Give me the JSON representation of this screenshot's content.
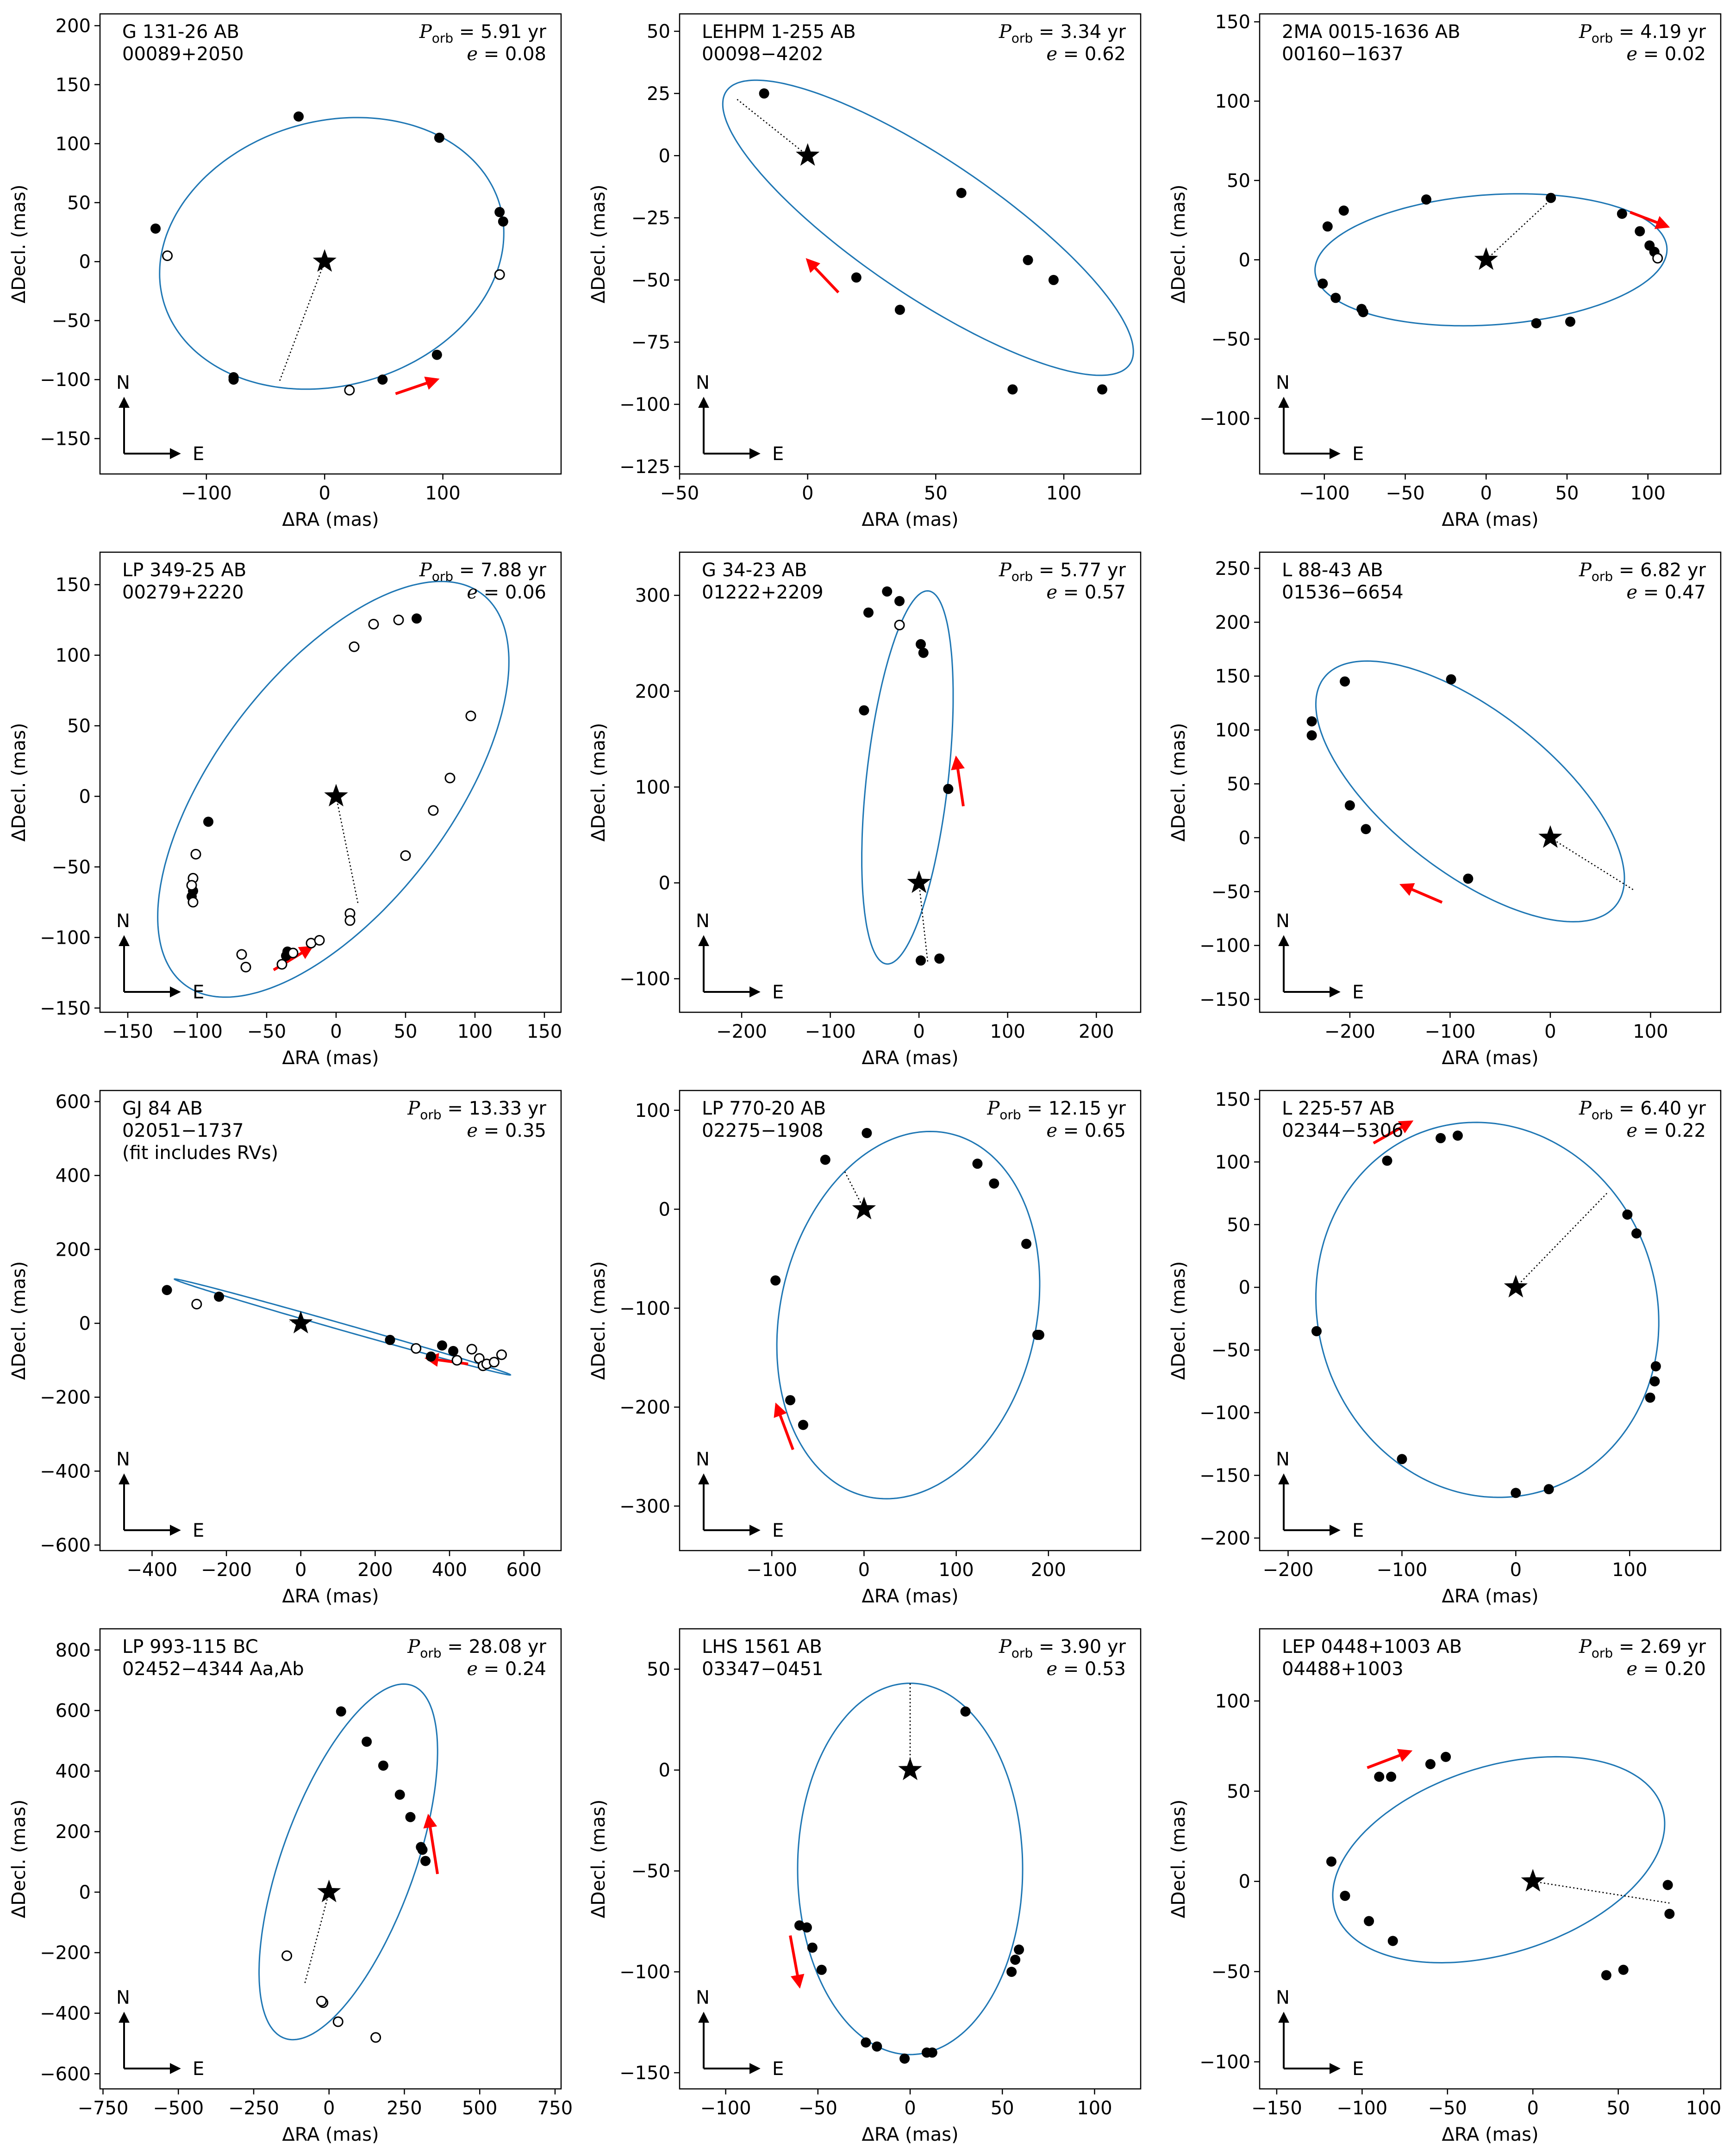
{
  "figure": {
    "xlabel": "ΔRA  (mas)",
    "ylabel": "ΔDecl.  (mas)",
    "compass_n": "N",
    "compass_e": "E"
  },
  "colors": {
    "orbit": "#1f77b4",
    "arrow": "#ff0000",
    "point": "#000000",
    "star": "#000000"
  },
  "chart_data": [
    {
      "type": "scatter",
      "name": "G 131-26 AB",
      "designation": "00089+2050",
      "note": "",
      "porb": "5.91 yr",
      "ecc": "0.08",
      "xlim": [
        -190,
        200
      ],
      "ylim": [
        -180,
        210
      ],
      "xticks": [
        -100,
        0,
        100
      ],
      "yticks": [
        -150,
        -100,
        -50,
        0,
        50,
        100,
        150,
        200
      ],
      "ellipse": {
        "cx": 6,
        "cy": 7,
        "a": 148,
        "b": 112,
        "angle": 16
      },
      "line_to": [
        -38,
        -101
      ],
      "arrow": [
        [
          60,
          -112
        ],
        [
          95,
          -100
        ]
      ],
      "points_filled": [
        [
          -143,
          28
        ],
        [
          -22,
          123
        ],
        [
          97,
          105
        ],
        [
          148,
          42
        ],
        [
          151,
          34
        ],
        [
          -77,
          -98
        ],
        [
          -77,
          -100
        ],
        [
          49,
          -100
        ],
        [
          95,
          -79
        ]
      ],
      "points_open": [
        [
          -133,
          5
        ],
        [
          148,
          -11
        ],
        [
          21,
          -109
        ]
      ]
    },
    {
      "type": "scatter",
      "name": "LEHPM 1-255 AB",
      "designation": "00098−4202",
      "note": "",
      "porb": "3.34 yr",
      "ecc": "0.62",
      "xlim": [
        -50,
        130
      ],
      "ylim": [
        -128,
        57
      ],
      "xticks": [
        -50,
        0,
        50,
        100
      ],
      "yticks": [
        -125,
        -100,
        -75,
        -50,
        -25,
        0,
        25,
        50
      ],
      "ellipse": {
        "cx": 47,
        "cy": -29,
        "a": 96,
        "b": 27,
        "angle": -35
      },
      "line_to": [
        -28,
        23
      ],
      "arrow": [
        [
          12,
          -55
        ],
        [
          0,
          -42
        ]
      ],
      "points_filled": [
        [
          -17,
          25
        ],
        [
          60,
          -15
        ],
        [
          86,
          -42
        ],
        [
          96,
          -50
        ],
        [
          19,
          -49
        ],
        [
          36,
          -62
        ],
        [
          80,
          -94
        ],
        [
          115,
          -94
        ]
      ],
      "points_open": []
    },
    {
      "type": "scatter",
      "name": "2MA 0015-1636 AB",
      "designation": "00160−1637",
      "note": "",
      "porb": "4.19 yr",
      "ecc": "0.02",
      "xlim": [
        -140,
        145
      ],
      "ylim": [
        -135,
        155
      ],
      "xticks": [
        -100,
        -50,
        0,
        50,
        100
      ],
      "yticks": [
        -100,
        -50,
        0,
        50,
        100,
        150
      ],
      "ellipse": {
        "cx": 3,
        "cy": 0,
        "a": 109,
        "b": 41,
        "angle": 4
      },
      "line_to": [
        40,
        38
      ],
      "arrow": [
        [
          89,
          30
        ],
        [
          112,
          21
        ]
      ],
      "points_filled": [
        [
          -37,
          38
        ],
        [
          -88,
          31
        ],
        [
          -98,
          21
        ],
        [
          -101,
          -15
        ],
        [
          -93,
          -24
        ],
        [
          -77,
          -31
        ],
        [
          -76,
          -33
        ],
        [
          40,
          39
        ],
        [
          84,
          29
        ],
        [
          95,
          18
        ],
        [
          101,
          9
        ],
        [
          104,
          5
        ],
        [
          52,
          -39
        ],
        [
          31,
          -40
        ]
      ],
      "points_open": [
        [
          106,
          1
        ]
      ]
    },
    {
      "type": "scatter",
      "name": "LP 349-25 AB",
      "designation": "00279+2220",
      "note": "",
      "porb": "7.88 yr",
      "ecc": "0.06",
      "xlim": [
        -170,
        162
      ],
      "ylim": [
        -153,
        173
      ],
      "xticks": [
        -150,
        -100,
        -50,
        0,
        50,
        100,
        150
      ],
      "yticks": [
        -150,
        -100,
        -50,
        0,
        50,
        100,
        150
      ],
      "ellipse": {
        "cx": -2,
        "cy": 5,
        "a": 175,
        "b": 84,
        "angle": 52
      },
      "line_to": [
        16,
        -77
      ],
      "arrow": [
        [
          -45,
          -123
        ],
        [
          -18,
          -107
        ]
      ],
      "points_filled": [
        [
          58,
          126
        ],
        [
          -92,
          -18
        ],
        [
          -103,
          -67
        ],
        [
          -104,
          -71
        ],
        [
          -35,
          -110
        ],
        [
          -36,
          -113
        ]
      ],
      "points_open": [
        [
          97,
          57
        ],
        [
          82,
          13
        ],
        [
          70,
          -10
        ],
        [
          50,
          -42
        ],
        [
          10,
          -83
        ],
        [
          10,
          -88
        ],
        [
          -103,
          -58
        ],
        [
          -104,
          -63
        ],
        [
          -101,
          -41
        ],
        [
          -103,
          -75
        ],
        [
          -68,
          -112
        ],
        [
          -65,
          -121
        ],
        [
          -39,
          -119
        ],
        [
          -31,
          -111
        ],
        [
          -18,
          -104
        ],
        [
          -12,
          -102
        ],
        [
          27,
          122
        ],
        [
          45,
          125
        ],
        [
          13,
          106
        ]
      ]
    },
    {
      "type": "scatter",
      "name": "G 34-23 AB",
      "designation": "01222+2209",
      "note": "",
      "porb": "5.77 yr",
      "ecc": "0.57",
      "xlim": [
        -270,
        250
      ],
      "ylim": [
        -135,
        345
      ],
      "xticks": [
        -200,
        -100,
        0,
        100,
        200
      ],
      "yticks": [
        -100,
        0,
        100,
        200,
        300
      ],
      "ellipse": {
        "cx": -13,
        "cy": 110,
        "a": 196,
        "b": 46,
        "angle": 83
      },
      "line_to": [
        10,
        -84
      ],
      "arrow": [
        [
          50,
          80
        ],
        [
          42,
          130
        ]
      ],
      "points_filled": [
        [
          -36,
          304
        ],
        [
          -22,
          294
        ],
        [
          -57,
          282
        ],
        [
          -62,
          180
        ],
        [
          2,
          249
        ],
        [
          5,
          240
        ],
        [
          33,
          98
        ],
        [
          23,
          -79
        ],
        [
          2,
          -81
        ]
      ],
      "points_open": [
        [
          -22,
          269
        ]
      ]
    },
    {
      "type": "scatter",
      "name": "L 88-43 AB",
      "designation": "01536−6654",
      "note": "",
      "porb": "6.82 yr",
      "ecc": "0.47",
      "xlim": [
        -290,
        170
      ],
      "ylim": [
        -162,
        265
      ],
      "xticks": [
        -200,
        -100,
        0,
        100
      ],
      "yticks": [
        -150,
        -100,
        -50,
        0,
        50,
        100,
        150,
        200,
        250
      ],
      "ellipse": {
        "cx": -80,
        "cy": 43,
        "a": 180,
        "b": 77,
        "angle": -35
      },
      "line_to": [
        84,
        -49
      ],
      "arrow": [
        [
          -108,
          -60
        ],
        [
          -148,
          -44
        ]
      ],
      "points_filled": [
        [
          -238,
          108
        ],
        [
          -238,
          95
        ],
        [
          -205,
          145
        ],
        [
          -200,
          30
        ],
        [
          -184,
          8
        ],
        [
          -99,
          147
        ],
        [
          -82,
          -38
        ]
      ],
      "points_open": []
    },
    {
      "type": "scatter",
      "name": "GJ 84 AB",
      "designation": "02051−1737",
      "note": "(fit includes RVs)",
      "porb": "13.33 yr",
      "ecc": "0.35",
      "xlim": [
        -540,
        700
      ],
      "ylim": [
        -615,
        630
      ],
      "xticks": [
        -400,
        -200,
        0,
        200,
        400,
        600
      ],
      "yticks": [
        -600,
        -400,
        -200,
        0,
        200,
        400,
        600
      ],
      "ellipse": {
        "cx": 112,
        "cy": -10,
        "a": 470,
        "b": 9,
        "angle": -16
      },
      "line_to": [
        -30,
        5
      ],
      "arrow": [
        [
          450,
          -110
        ],
        [
          340,
          -95
        ]
      ],
      "points_filled": [
        [
          -360,
          90
        ],
        [
          -220,
          72
        ],
        [
          240,
          -45
        ],
        [
          380,
          -60
        ],
        [
          410,
          -75
        ],
        [
          350,
          -90
        ]
      ],
      "points_open": [
        [
          -280,
          52
        ],
        [
          310,
          -68
        ],
        [
          460,
          -70
        ],
        [
          480,
          -95
        ],
        [
          490,
          -115
        ],
        [
          500,
          -110
        ],
        [
          520,
          -105
        ],
        [
          540,
          -85
        ],
        [
          420,
          -100
        ]
      ]
    },
    {
      "type": "scatter",
      "name": "LP 770-20 AB",
      "designation": "02275−1908",
      "note": "",
      "porb": "12.15 yr",
      "ecc": "0.65",
      "xlim": [
        -200,
        300
      ],
      "ylim": [
        -345,
        120
      ],
      "xticks": [
        -100,
        0,
        100,
        200
      ],
      "yticks": [
        -300,
        -200,
        -100,
        0,
        100
      ],
      "ellipse": {
        "cx": 48,
        "cy": -107,
        "a": 189,
        "b": 138,
        "angle": 74
      },
      "line_to": [
        -22,
        40
      ],
      "arrow": [
        [
          -77,
          -243
        ],
        [
          -95,
          -198
        ]
      ],
      "points_filled": [
        [
          3,
          77
        ],
        [
          -42,
          50
        ],
        [
          123,
          46
        ],
        [
          141,
          26
        ],
        [
          176,
          -35
        ],
        [
          188,
          -127
        ],
        [
          190,
          -127
        ],
        [
          -96,
          -72
        ],
        [
          -80,
          -193
        ],
        [
          -66,
          -218
        ]
      ],
      "points_open": []
    },
    {
      "type": "scatter",
      "name": "L 225-57 AB",
      "designation": "02344−5306",
      "note": "",
      "porb": "6.40 yr",
      "ecc": "0.22",
      "xlim": [
        -225,
        180
      ],
      "ylim": [
        -210,
        157
      ],
      "xticks": [
        -200,
        -100,
        0,
        100
      ],
      "yticks": [
        -200,
        -150,
        -100,
        -50,
        0,
        50,
        100,
        150
      ],
      "ellipse": {
        "cx": -25,
        "cy": -18,
        "a": 155,
        "b": 145,
        "angle": -42
      },
      "line_to": [
        80,
        75
      ],
      "arrow": [
        [
          -125,
          115
        ],
        [
          -92,
          132
        ]
      ],
      "points_filled": [
        [
          -113,
          101
        ],
        [
          -66,
          119
        ],
        [
          -51,
          121
        ],
        [
          98,
          58
        ],
        [
          106,
          43
        ],
        [
          123,
          -63
        ],
        [
          122,
          -75
        ],
        [
          118,
          -88
        ],
        [
          -175,
          -35
        ],
        [
          -100,
          -137
        ],
        [
          29,
          -161
        ],
        [
          0,
          -164
        ]
      ],
      "points_open": []
    },
    {
      "type": "scatter",
      "name": "LP 993-115 BC",
      "designation": "02452−4344 Aa,Ab",
      "note": "",
      "porb": "28.08 yr",
      "ecc": "0.24",
      "xlim": [
        -760,
        770
      ],
      "ylim": [
        -650,
        870
      ],
      "xticks": [
        -750,
        -500,
        -250,
        0,
        250,
        500,
        750
      ],
      "yticks": [
        -600,
        -400,
        -200,
        0,
        200,
        400,
        600,
        800
      ],
      "ellipse": {
        "cx": 64,
        "cy": 100,
        "a": 620,
        "b": 220,
        "angle": 70
      },
      "line_to": [
        -80,
        -300
      ],
      "arrow": [
        [
          360,
          60
        ],
        [
          330,
          250
        ]
      ],
      "points_filled": [
        [
          40,
          597
        ],
        [
          125,
          497
        ],
        [
          180,
          418
        ],
        [
          235,
          322
        ],
        [
          270,
          248
        ],
        [
          305,
          149
        ],
        [
          310,
          140
        ],
        [
          320,
          103
        ]
      ],
      "points_open": [
        [
          -140,
          -210
        ],
        [
          -20,
          -365
        ],
        [
          -25,
          -360
        ],
        [
          30,
          -428
        ],
        [
          155,
          -480
        ]
      ]
    },
    {
      "type": "scatter",
      "name": "LHS 1561 AB",
      "designation": "03347−0451",
      "note": "",
      "porb": "3.90 yr",
      "ecc": "0.53",
      "xlim": [
        -125,
        125
      ],
      "ylim": [
        -158,
        70
      ],
      "xticks": [
        -100,
        -50,
        0,
        50,
        100
      ],
      "yticks": [
        -150,
        -100,
        -50,
        0,
        50
      ],
      "ellipse": {
        "cx": 0,
        "cy": -49,
        "a": 92,
        "b": 61,
        "angle": 90
      },
      "line_to": [
        0,
        43
      ],
      "arrow": [
        [
          -65,
          -82
        ],
        [
          -60,
          -107
        ]
      ],
      "points_filled": [
        [
          30,
          29
        ],
        [
          -60,
          -77
        ],
        [
          -56,
          -78
        ],
        [
          -53,
          -88
        ],
        [
          -48,
          -99
        ],
        [
          -24,
          -135
        ],
        [
          -18,
          -137
        ],
        [
          -3,
          -143
        ],
        [
          9,
          -140
        ],
        [
          12,
          -140
        ],
        [
          59,
          -89
        ],
        [
          57,
          -94
        ],
        [
          55,
          -100
        ]
      ],
      "points_open": []
    },
    {
      "type": "scatter",
      "name": "LEP 0448+1003 AB",
      "designation": "04488+1003",
      "note": "",
      "porb": "2.69 yr",
      "ecc": "0.20",
      "xlim": [
        -160,
        110
      ],
      "ylim": [
        -115,
        140
      ],
      "xticks": [
        -150,
        -100,
        -50,
        0,
        50,
        100
      ],
      "yticks": [
        -100,
        -50,
        0,
        50,
        100
      ],
      "ellipse": {
        "cx": -20,
        "cy": 12,
        "a": 100,
        "b": 52,
        "angle": 16
      },
      "line_to": [
        80,
        -12
      ],
      "arrow": [
        [
          -97,
          63
        ],
        [
          -72,
          72
        ]
      ],
      "points_filled": [
        [
          -51,
          69
        ],
        [
          -60,
          65
        ],
        [
          -83,
          58
        ],
        [
          -90,
          58
        ],
        [
          -118,
          11
        ],
        [
          -110,
          -8
        ],
        [
          -96,
          -22
        ],
        [
          -82,
          -33
        ],
        [
          43,
          -52
        ],
        [
          53,
          -49
        ],
        [
          79,
          -2
        ],
        [
          80,
          -18
        ]
      ],
      "points_open": []
    }
  ]
}
